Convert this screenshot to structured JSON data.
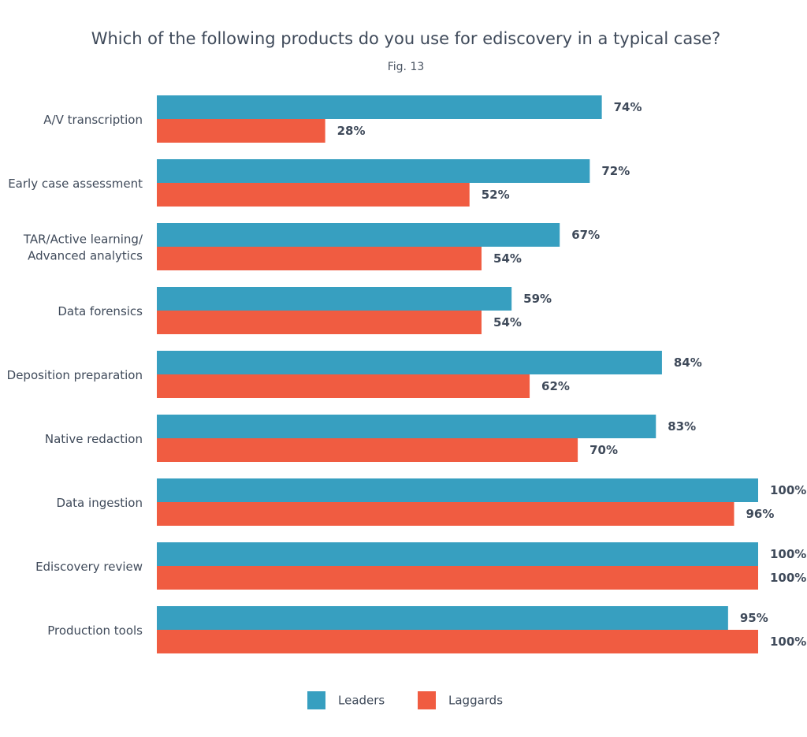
{
  "chart_data": {
    "type": "bar",
    "orientation": "horizontal",
    "title": "Which of the following products do you use for ediscovery in a typical case?",
    "subtitle": "Fig. 13",
    "categories": [
      [
        "A/V transcription"
      ],
      [
        "Early case assessment"
      ],
      [
        "TAR/Active learning/",
        "Advanced analytics"
      ],
      [
        "Data forensics"
      ],
      [
        "Deposition preparation"
      ],
      [
        "Native redaction"
      ],
      [
        "Data ingestion"
      ],
      [
        "Ediscovery review"
      ],
      [
        "Production tools"
      ]
    ],
    "series": [
      {
        "name": "Leaders",
        "color": "#379fc0",
        "values": [
          74,
          72,
          67,
          59,
          84,
          83,
          100,
          100,
          95
        ]
      },
      {
        "name": "Laggards",
        "color": "#f05c41",
        "values": [
          28,
          52,
          54,
          54,
          62,
          70,
          96,
          100,
          100
        ]
      }
    ],
    "value_suffix": "%",
    "xlim": [
      0,
      100
    ],
    "grid": false,
    "legend_position": "bottom-center"
  }
}
